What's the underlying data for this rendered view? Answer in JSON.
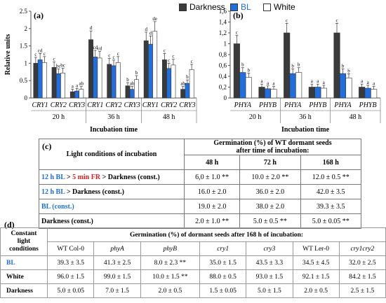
{
  "legend": [
    {
      "label": "Darkness",
      "color": "#3a3a3a"
    },
    {
      "label": "BL",
      "color": "#1f6fe0"
    },
    {
      "label": "White",
      "color": "#ffffff"
    }
  ],
  "chart_data": [
    {
      "type": "bar",
      "panel": "(a)",
      "ylabel": "Relative units",
      "xlabel": "Incubation time",
      "ylim": [
        0,
        2.5
      ],
      "yticks": [
        "0",
        "0.5",
        "1",
        "1.5",
        "2",
        "2.5"
      ],
      "groups": [
        {
          "time": "20 h",
          "genes": [
            {
              "gene": "CRY1",
              "values": [
                1.0,
                1.1,
                1.02
              ],
              "letters": [
                "c",
                "cd",
                "c"
              ]
            },
            {
              "gene": "CRY2",
              "values": [
                0.88,
                0.7,
                0.72
              ],
              "letters": [
                "c",
                "bc",
                "bc"
              ]
            },
            {
              "gene": "CRY3",
              "values": [
                0.18,
                0.2,
                0.25
              ],
              "letters": [
                "a",
                "a",
                "ab"
              ]
            }
          ]
        },
        {
          "time": "36 h",
          "genes": [
            {
              "gene": "CRY1",
              "values": [
                1.68,
                1.18,
                1.15
              ],
              "letters": [
                "d",
                "cd",
                "cd"
              ]
            },
            {
              "gene": "CRY2",
              "values": [
                0.97,
                0.93,
                1.02
              ],
              "letters": [
                "c",
                "c",
                "c"
              ]
            },
            {
              "gene": "CRY3",
              "values": [
                0.35,
                0.25,
                0.53
              ],
              "letters": [
                "b",
                "ab",
                "b"
              ]
            }
          ]
        },
        {
          "time": "48 h",
          "genes": [
            {
              "gene": "CRY1",
              "values": [
                1.65,
                1.55,
                1.92
              ],
              "letters": [
                "d",
                "d",
                "de"
              ]
            },
            {
              "gene": "CRY2",
              "values": [
                1.1,
                0.85,
                0.95
              ],
              "letters": [
                "c",
                "c",
                "c"
              ]
            },
            {
              "gene": "CRY3",
              "values": [
                0.25,
                0.42,
                0.82
              ],
              "letters": [
                "ab",
                "b",
                "c"
              ]
            }
          ]
        }
      ]
    },
    {
      "type": "bar",
      "panel": "(b)",
      "xlabel": "Incubation time",
      "ylim": [
        0,
        1.6
      ],
      "yticks": [
        "0",
        "0,2",
        "0,4",
        "0,6",
        "0,8",
        "1",
        "1,2",
        "1,4",
        "1,6"
      ],
      "groups": [
        {
          "time": "20 h",
          "genes": [
            {
              "gene": "PHYA",
              "values": [
                1.0,
                0.47,
                0.38
              ],
              "letters": [
                "c",
                "b",
                "b"
              ]
            },
            {
              "gene": "PHYB",
              "values": [
                0.2,
                0.17,
                0.16
              ],
              "letters": [
                "a",
                "a",
                "a"
              ]
            }
          ]
        },
        {
          "time": "36 h",
          "genes": [
            {
              "gene": "PHYA",
              "values": [
                1.2,
                0.45,
                0.47
              ],
              "letters": [
                "c",
                "b",
                "b"
              ]
            },
            {
              "gene": "PHYB",
              "values": [
                0.2,
                0.2,
                0.18
              ],
              "letters": [
                "a",
                "a",
                "a"
              ]
            }
          ]
        },
        {
          "time": "48 h",
          "genes": [
            {
              "gene": "PHYA",
              "values": [
                1.2,
                0.45,
                0.37
              ],
              "letters": [
                "c",
                "b",
                "b"
              ]
            },
            {
              "gene": "PHYB",
              "values": [
                0.2,
                0.18,
                0.16
              ],
              "letters": [
                "a",
                "a",
                "a"
              ]
            }
          ]
        }
      ]
    }
  ],
  "table_c": {
    "label": "(c)",
    "corner": "Light conditions of incubation",
    "header_line1": "Germination (%) of WT dormant seeds",
    "header_line2": "after time of incubation:",
    "times": [
      "48 h",
      "72 h",
      "168 h"
    ],
    "rows": [
      {
        "cond_a": "12 h BL",
        "cond_b": " > ",
        "cond_c": "5 min FR",
        "cond_d": " > Darkness (const.)",
        "values": [
          "6,0 ± 1.0 **",
          "10.0 ± 2.0 **",
          "12.0 ± 0.5 **"
        ]
      },
      {
        "cond_a": "12 h BL",
        "cond_b": " > Darkness (const.)",
        "cond_c": "",
        "cond_d": "",
        "values": [
          "16.0 ± 2.0",
          "36.0 ± 2.0",
          "42.0 ± 3.5"
        ]
      },
      {
        "cond_a": "BL (const.)",
        "cond_b": "",
        "cond_c": "",
        "cond_d": "",
        "values": [
          "19.0 ± 2.0",
          "38.0 ± 2.0",
          "39.3 ± 3.5"
        ]
      },
      {
        "cond_a": "",
        "cond_b": "Darkness (const.)",
        "cond_c": "",
        "cond_d": "",
        "values": [
          "2.0 ± 1.0 **",
          "5.0 ± 0.5 **",
          "5.0 ± 0.05 **"
        ]
      }
    ]
  },
  "table_d": {
    "label": "(d)",
    "corner_l1": "Constant",
    "corner_l2": "light",
    "corner_l3": "conditions",
    "header": "Germination (%) of dormant seeds after 168 h of incubation:",
    "genotypes": [
      "WT Col-0",
      "phyA",
      "phyB",
      "cry1",
      "cry3",
      "WT Ler-0",
      "cry1cry2"
    ],
    "rows": [
      {
        "cond": "BL",
        "values": [
          "39.3 ± 3.5",
          "41.3 ± 2.5",
          "8.0 ± 2.3 **",
          "35.0 ± 1.5",
          "43.5 ± 3.3",
          "34.5 ± 4.5",
          "32.0 ± 2.5"
        ]
      },
      {
        "cond": "White",
        "values": [
          "96.0 ± 1.5",
          "99.0 ± 1.5",
          "10.0 ± 1.5 **",
          "88.0 ± 0.5",
          "93.0 ± 1.5",
          "92.1 ± 1.5",
          "84.2 ± 1.5"
        ]
      },
      {
        "cond": "Darkness",
        "values": [
          "5.0 ± 0.05",
          "7.0 ± 1.5",
          "2.0 ± 0.5",
          "1.5 ± 0.05",
          "5.0 ± 1.5",
          "2.0 ± 0.5",
          "2.5 ± 1.5"
        ]
      }
    ]
  }
}
